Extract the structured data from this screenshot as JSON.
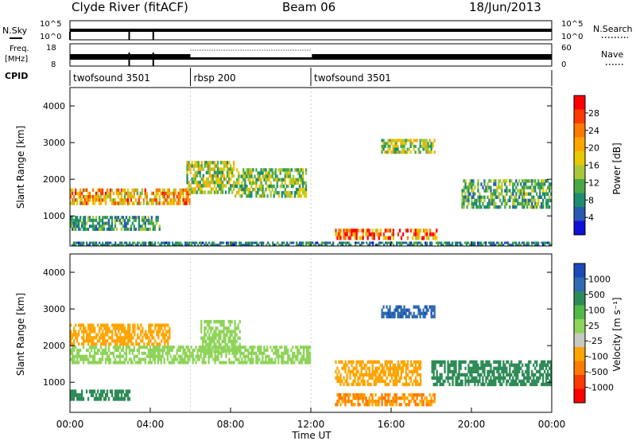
{
  "header": {
    "station": "Clyde River (fitACF)",
    "beam": "Beam 06",
    "date": "18/Jun/2013"
  },
  "top_panels": {
    "nsky": {
      "label": "N.Sky",
      "tick_top": "10^5",
      "tick_bottom": "10^0",
      "right_label": "N.Search",
      "right_tick_top": "10^5",
      "right_tick_bottom": "10^0"
    },
    "freq": {
      "label_1": "Freq.",
      "label_2": "[MHz]",
      "tick_top": "18",
      "tick_bottom": "8",
      "right_label": "Nave",
      "right_tick_top": "60",
      "right_tick_bottom": "0"
    },
    "cpid": {
      "label": "CPID",
      "segments": [
        {
          "name": "twofsound 3501",
          "start_hour": 0
        },
        {
          "name": "rbsp 200",
          "start_hour": 6
        },
        {
          "name": "twofsound 3501",
          "start_hour": 12
        }
      ]
    }
  },
  "axes": {
    "ylabel": "Slant Range [km]",
    "xlabel": "Time UT",
    "xticks": [
      "00:00",
      "04:00",
      "08:00",
      "12:00",
      "16:00",
      "20:00",
      "00:00"
    ]
  },
  "power_scale": {
    "label": "Power [dB]",
    "ticks": [
      "28",
      "24",
      "20",
      "16",
      "12",
      "8",
      "4"
    ],
    "colors": [
      "#ff0000",
      "#ff3a00",
      "#ff7a00",
      "#ffa500",
      "#e8c800",
      "#a8c838",
      "#48a848",
      "#1e8c6e",
      "#2a5ab0",
      "#1010d8"
    ]
  },
  "velocity_scale": {
    "label": "Velocity [m s⁻¹]",
    "ticks": [
      "1000",
      "500",
      "100",
      "25",
      "-25",
      "-100",
      "-500",
      "-1000"
    ],
    "colors": [
      "#1a4bb8",
      "#2f6bb0",
      "#2e8b57",
      "#52b84a",
      "#8fd45a",
      "#c8c8c0",
      "#ffa500",
      "#ff7a00",
      "#ff3a00",
      "#ff0000"
    ]
  },
  "chart_data": [
    {
      "type": "heatmap",
      "title": "",
      "ylabel": "Slant Range [km]",
      "xlabel": "",
      "x_range_hours": [
        0,
        24
      ],
      "ylim": [
        180,
        4500
      ],
      "yticks": [
        1000,
        2000,
        3000,
        4000
      ],
      "quantity": "Power [dB]",
      "features": [
        {
          "t0": 0,
          "t1": 6,
          "r0": 1300,
          "r1": 1750,
          "value": 20
        },
        {
          "t0": 0,
          "t1": 4.5,
          "r0": 600,
          "r1": 1000,
          "value": 8
        },
        {
          "t0": 5.8,
          "t1": 8.2,
          "r0": 1600,
          "r1": 2500,
          "value": 14
        },
        {
          "t0": 8.2,
          "t1": 11.8,
          "r0": 1500,
          "r1": 2300,
          "value": 12
        },
        {
          "t0": 13.2,
          "t1": 18.3,
          "r0": 350,
          "r1": 650,
          "value": 24
        },
        {
          "t0": 15.5,
          "t1": 18.2,
          "r0": 2700,
          "r1": 3100,
          "value": 14
        },
        {
          "t0": 19.5,
          "t1": 24,
          "r0": 1200,
          "r1": 2000,
          "value": 10
        },
        {
          "t0": 0,
          "t1": 24,
          "r0": 180,
          "r1": 300,
          "value": 6
        }
      ]
    },
    {
      "type": "heatmap",
      "title": "",
      "ylabel": "Slant Range [km]",
      "xlabel": "Time UT",
      "x_range_hours": [
        0,
        24
      ],
      "ylim": [
        180,
        4500
      ],
      "yticks": [
        1000,
        2000,
        3000,
        4000
      ],
      "quantity": "Velocity [m s^-1]",
      "features": [
        {
          "t0": 0,
          "t1": 12,
          "r0": 1500,
          "r1": 2000,
          "value": 0
        },
        {
          "t0": 6.5,
          "t1": 8.5,
          "r0": 1800,
          "r1": 2700,
          "value": 0
        },
        {
          "t0": 0,
          "t1": 5,
          "r0": 2000,
          "r1": 2600,
          "value": -300
        },
        {
          "t0": 13.2,
          "t1": 18.2,
          "r0": 350,
          "r1": 700,
          "value": -500
        },
        {
          "t0": 13.2,
          "t1": 17.5,
          "r0": 900,
          "r1": 1600,
          "value": -300
        },
        {
          "t0": 15.5,
          "t1": 18.2,
          "r0": 2750,
          "r1": 3100,
          "value": 800
        },
        {
          "t0": 18,
          "t1": 24,
          "r0": 900,
          "r1": 1600,
          "value": 200
        },
        {
          "t0": 0,
          "t1": 3,
          "r0": 500,
          "r1": 800,
          "value": 150
        }
      ]
    }
  ]
}
